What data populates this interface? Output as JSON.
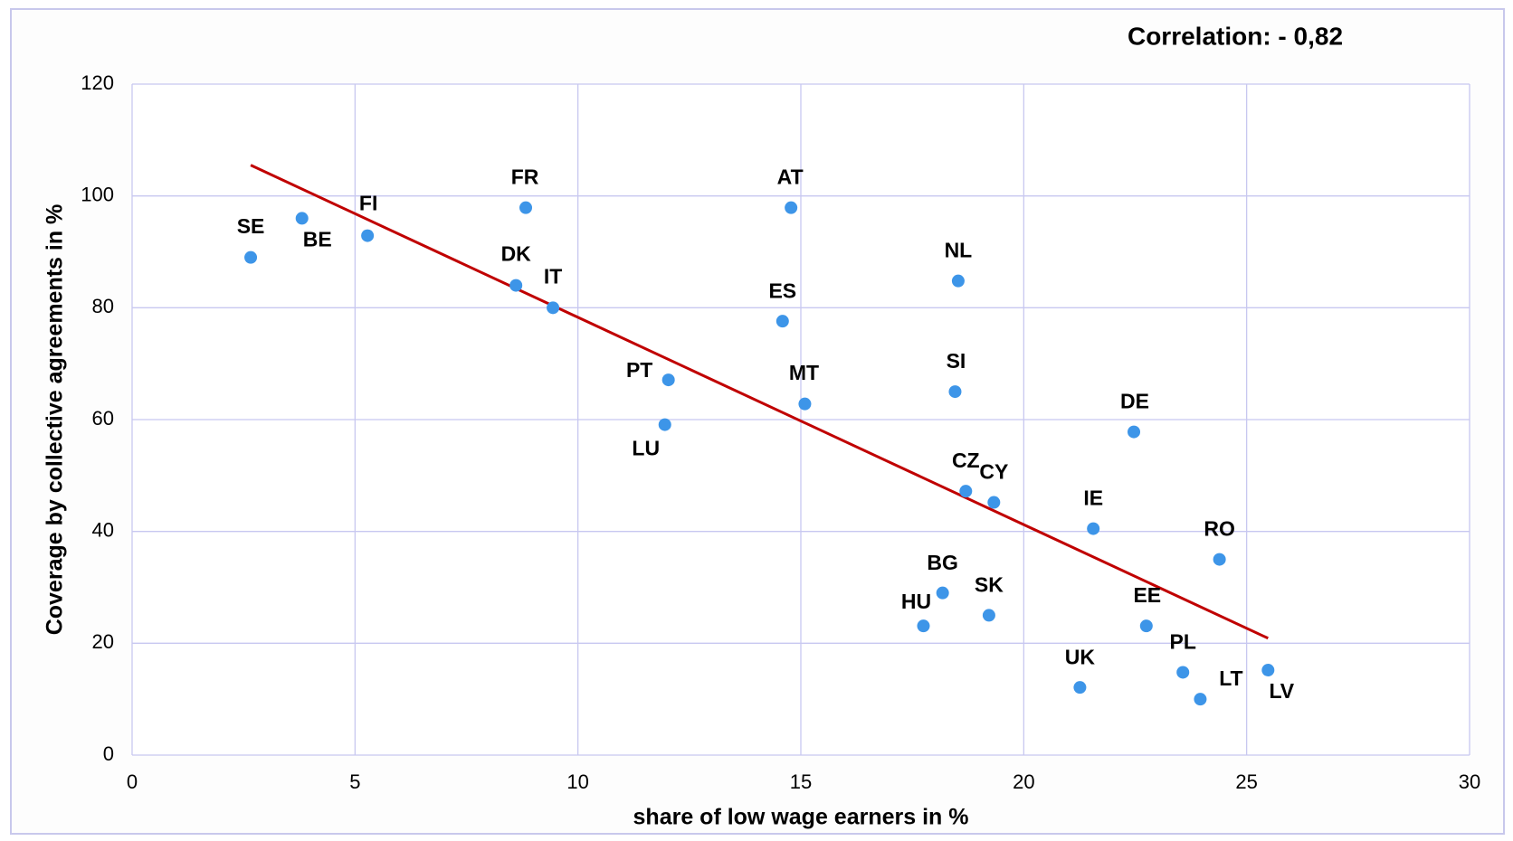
{
  "chart_data": {
    "type": "scatter",
    "annotation": "Correlation:  - 0,82",
    "xlabel": "share of low wage earners in %",
    "ylabel": "Coverage by collective  agreements  in %",
    "xlim": [
      0,
      30
    ],
    "xticks": [
      0,
      5,
      10,
      15,
      20,
      25,
      30
    ],
    "ylim": [
      0,
      120
    ],
    "yticks": [
      0,
      20,
      40,
      60,
      80,
      100,
      120
    ],
    "grid": true,
    "color": "#3d95e8",
    "categories": [
      "SE",
      "BE",
      "FI",
      "FR",
      "DK",
      "IT",
      "PT",
      "LU",
      "AT",
      "ES",
      "MT",
      "NL",
      "SI",
      "DE",
      "CZ",
      "CY",
      "IE",
      "RO",
      "BG",
      "SK",
      "HU",
      "EE",
      "UK",
      "PL",
      "LT",
      "LV"
    ],
    "x": [
      2.66,
      3.81,
      5.28,
      8.83,
      8.61,
      9.44,
      12.03,
      11.95,
      14.78,
      14.59,
      15.09,
      18.53,
      18.46,
      22.47,
      18.7,
      19.33,
      21.56,
      24.39,
      18.18,
      19.22,
      17.75,
      22.75,
      21.26,
      23.57,
      23.96,
      25.48
    ],
    "values": [
      89.0,
      96.0,
      92.9,
      97.9,
      84.0,
      80.0,
      67.1,
      59.1,
      97.9,
      77.6,
      62.8,
      84.8,
      65.0,
      57.8,
      47.2,
      45.2,
      40.5,
      35.0,
      29.0,
      25.0,
      23.1,
      23.1,
      12.1,
      14.8,
      10.0,
      15.2
    ],
    "trendline": {
      "color": "#c00000",
      "x": [
        2.66,
        25.48
      ],
      "values": [
        105.5,
        20.9
      ]
    }
  }
}
